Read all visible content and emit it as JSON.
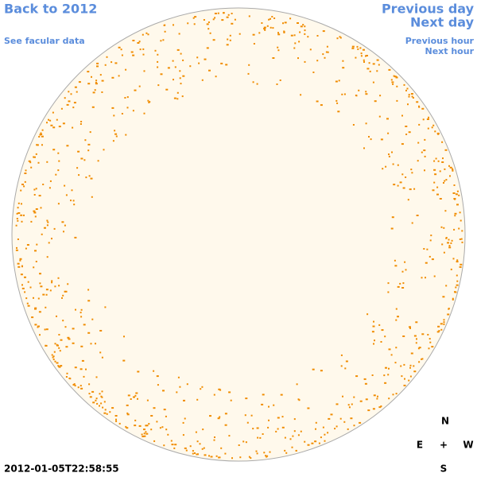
{
  "navigation": {
    "back": "Back to 2012",
    "facular": "See facular data",
    "previous_day": "Previous day",
    "next_day": "Next day",
    "previous_hour": "Previous hour",
    "next_hour": "Next hour"
  },
  "timestamp": "2012-01-05T22:58:55",
  "compass": {
    "north": "N",
    "east": "E",
    "center": "+",
    "west": "W",
    "south": "S"
  }
}
